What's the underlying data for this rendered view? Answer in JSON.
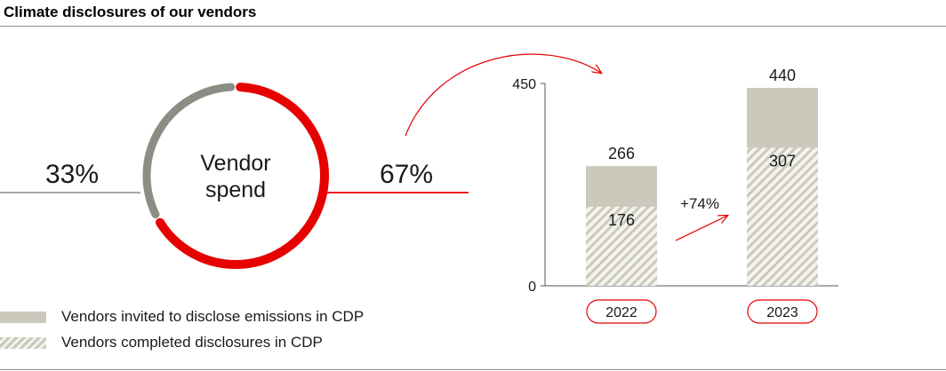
{
  "title": "Climate disclosures of our vendors",
  "donut": {
    "center_label_line1": "Vendor",
    "center_label_line2": "spend",
    "left_label": "33%",
    "right_label": "67%",
    "segments": [
      {
        "value": 33,
        "color": "#8d8d86",
        "label": "33%"
      },
      {
        "value": 67,
        "color": "#e60000",
        "label": "67%"
      }
    ]
  },
  "legend": {
    "invited": "Vendors invited to disclose emissions in CDP",
    "completed": "Vendors completed disclosures in CDP"
  },
  "growth_label": "+74%",
  "colors": {
    "accent": "#e60000",
    "invited": "#cbc9bc",
    "completed_stripe": "#cbc9bc",
    "completed_bg": "#f4f3ee",
    "donut_grey": "#8d8d86"
  },
  "chart_data": [
    {
      "type": "pie",
      "categories": [
        "33%",
        "67%"
      ],
      "values": [
        33,
        67
      ]
    },
    {
      "type": "bar",
      "categories": [
        "2022",
        "2023"
      ],
      "series": [
        {
          "name": "Vendors invited to disclose emissions in CDP",
          "values": [
            266,
            440
          ]
        },
        {
          "name": "Vendors completed disclosures in CDP",
          "values": [
            176,
            307
          ]
        }
      ],
      "ylim": [
        0,
        450
      ],
      "yticks": [
        0,
        450
      ],
      "grid": false,
      "annotation": "+74%"
    }
  ]
}
